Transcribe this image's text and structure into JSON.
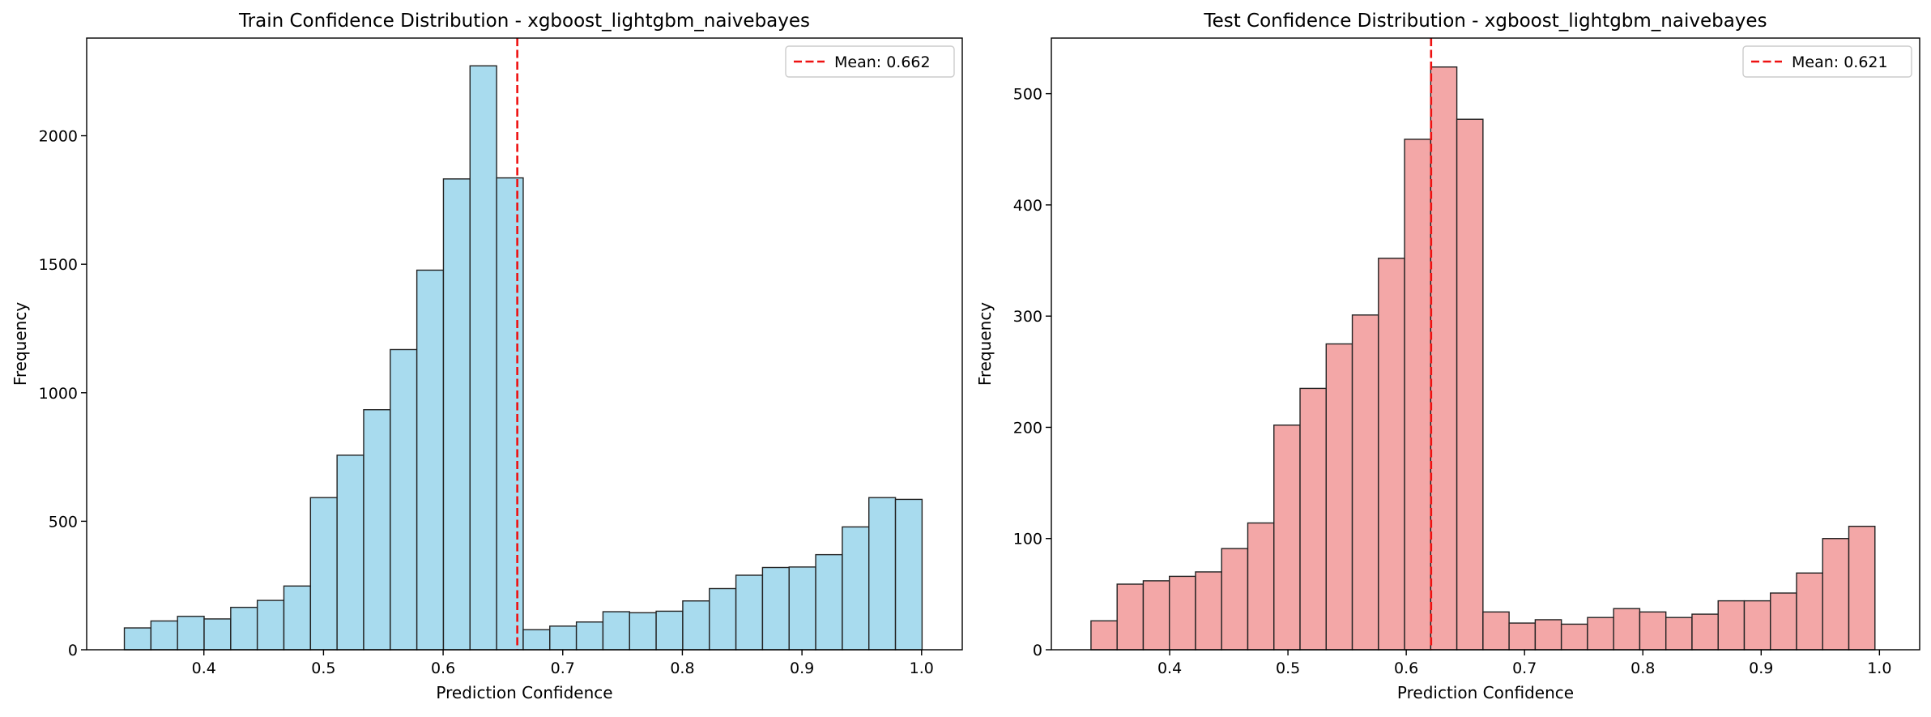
{
  "chart_data": [
    {
      "type": "bar",
      "title": "Train Confidence Distribution - xgboost_lightgbm_naivebayes",
      "xlabel": "Prediction Confidence",
      "ylabel": "Frequency",
      "xlim": [
        0.302,
        1.034
      ],
      "ylim": [
        0,
        2380
      ],
      "xticks": [
        "0.4",
        "0.5",
        "0.6",
        "0.7",
        "0.8",
        "0.9",
        "1.0"
      ],
      "yticks": [
        "0",
        "500",
        "1000",
        "1500",
        "2000"
      ],
      "bin_start": 0.3335,
      "bin_width": 0.02223,
      "values": [
        85,
        112,
        130,
        120,
        165,
        192,
        248,
        592,
        757,
        934,
        1168,
        1477,
        1832,
        2272,
        1836,
        78,
        92,
        108,
        148,
        144,
        150,
        190,
        238,
        290,
        320,
        322,
        370,
        478,
        592,
        585
      ],
      "bar_color": "#a8dbee",
      "edge_color": "#222222",
      "mean_line": {
        "value": 0.662,
        "color": "#ee1111",
        "label": "Mean: 0.662"
      },
      "legend": {
        "location": "top-right",
        "entries": [
          "Mean: 0.662"
        ]
      },
      "grid": false
    },
    {
      "type": "bar",
      "title": "Test Confidence Distribution - xgboost_lightgbm_naivebayes",
      "xlabel": "Prediction Confidence",
      "ylabel": "Frequency",
      "xlim": [
        0.3,
        1.034
      ],
      "ylim": [
        0,
        550
      ],
      "xticks": [
        "0.4",
        "0.5",
        "0.6",
        "0.7",
        "0.8",
        "0.9",
        "1.0"
      ],
      "yticks": [
        "0",
        "100",
        "200",
        "300",
        "400",
        "500"
      ],
      "bin_start": 0.3335,
      "bin_width": 0.02209,
      "values": [
        26,
        59,
        62,
        66,
        70,
        91,
        114,
        202,
        235,
        275,
        301,
        352,
        459,
        524,
        477,
        34,
        24,
        27,
        23,
        29,
        37,
        34,
        29,
        32,
        44,
        44,
        51,
        69,
        100,
        111
      ],
      "bar_color": "#f3a7a7",
      "edge_color": "#222222",
      "mean_line": {
        "value": 0.621,
        "color": "#ee1111",
        "label": "Mean: 0.621"
      },
      "legend": {
        "location": "top-right",
        "entries": [
          "Mean: 0.621"
        ]
      },
      "grid": false
    }
  ]
}
